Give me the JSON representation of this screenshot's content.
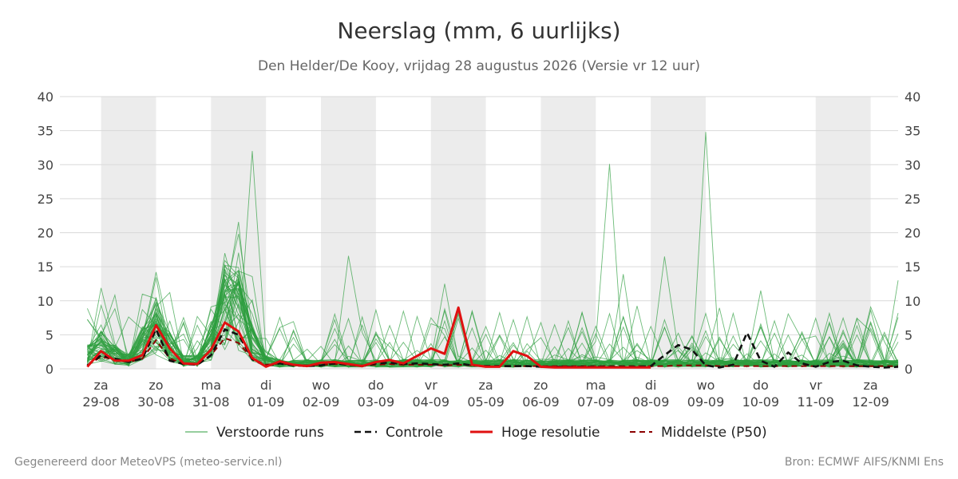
{
  "title": "Neerslag (mm, 6 uurlijks)",
  "subtitle": "Den Helder/De Kooy, vrijdag 28 augustus 2026 (Versie vr 12 uur)",
  "footer_left": "Gegenereerd door MeteoVPS (meteo-service.nl)",
  "footer_right": "Bron: ECMWF AIFS/KNMI Ens",
  "colors": {
    "ensemble": "#2e9e3e",
    "control": "#111111",
    "highres": "#e01010",
    "median": "#8b0000",
    "weekend_band": "#ececec",
    "grid": "#d9d9d9"
  },
  "chart_data": {
    "type": "line",
    "ylim": [
      0,
      40
    ],
    "yticks": [
      0,
      5,
      10,
      15,
      20,
      25,
      30,
      35,
      40
    ],
    "xlim_days": [
      -0.75,
      14.5
    ],
    "grid": true,
    "legend_position": "bottom",
    "x_ticks": [
      {
        "day": "za",
        "date": "29-08"
      },
      {
        "day": "zo",
        "date": "30-08"
      },
      {
        "day": "ma",
        "date": "31-08"
      },
      {
        "day": "di",
        "date": "01-09"
      },
      {
        "day": "wo",
        "date": "02-09"
      },
      {
        "day": "do",
        "date": "03-09"
      },
      {
        "day": "vr",
        "date": "04-09"
      },
      {
        "day": "za",
        "date": "05-09"
      },
      {
        "day": "zo",
        "date": "06-09"
      },
      {
        "day": "ma",
        "date": "07-09"
      },
      {
        "day": "di",
        "date": "08-09"
      },
      {
        "day": "wo",
        "date": "09-09"
      },
      {
        "day": "do",
        "date": "10-09"
      },
      {
        "day": "vr",
        "date": "11-09"
      },
      {
        "day": "za",
        "date": "12-09"
      }
    ],
    "shaded_bands": [
      [
        0,
        1
      ],
      [
        2,
        3
      ],
      [
        4,
        5
      ],
      [
        6,
        7
      ],
      [
        8,
        9
      ],
      [
        10,
        11
      ],
      [
        13,
        14
      ]
    ],
    "legend": [
      {
        "key": "ensemble",
        "label": "Verstoorde runs",
        "style": "thin"
      },
      {
        "key": "control",
        "label": "Controle",
        "style": "dashed"
      },
      {
        "key": "highres",
        "label": "Hoge resolutie",
        "style": "thick"
      },
      {
        "key": "median",
        "label": "Middelste (P50)",
        "style": "dashed"
      }
    ],
    "series": [
      {
        "name": "Hoge resolutie",
        "x": [
          -0.25,
          0,
          0.25,
          0.5,
          0.75,
          1,
          1.25,
          1.5,
          1.75,
          2,
          2.25,
          2.5,
          2.75,
          3,
          3.25,
          3.5,
          3.75,
          4,
          4.25,
          4.5,
          4.75,
          5,
          5.25,
          5.5,
          5.75,
          6,
          6.25,
          6.5,
          6.75,
          7,
          7.25,
          7.5,
          7.75,
          8,
          8.25,
          8.5,
          8.75,
          9,
          9.25,
          9.5,
          9.75,
          10
        ],
        "values": [
          0.3,
          2.6,
          1.2,
          1.2,
          2.0,
          6.4,
          3.0,
          0.8,
          0.7,
          2.8,
          6.8,
          5.5,
          1.6,
          0.3,
          1.1,
          0.6,
          0.4,
          0.9,
          1.0,
          0.7,
          0.4,
          1.0,
          1.3,
          0.8,
          1.9,
          3.0,
          2.2,
          9.0,
          0.6,
          0.3,
          0.3,
          2.6,
          1.9,
          0.3,
          0.2,
          0.2,
          0.2,
          0.2,
          0.2,
          0.2,
          0.2,
          0.2
        ]
      },
      {
        "name": "Controle",
        "x": [
          -0.25,
          0,
          0.25,
          0.5,
          0.75,
          1,
          1.25,
          1.5,
          1.75,
          2,
          2.25,
          2.5,
          2.75,
          3,
          3.25,
          3.5,
          3.75,
          4,
          4.25,
          4.5,
          4.75,
          5,
          5.25,
          5.5,
          5.75,
          6,
          6.25,
          6.5,
          6.75,
          7,
          7.25,
          7.5,
          7.75,
          8,
          8.25,
          8.5,
          8.75,
          9,
          9.25,
          9.5,
          9.75,
          10,
          10.25,
          10.5,
          10.75,
          11,
          11.25,
          11.5,
          11.75,
          12,
          12.25,
          12.5,
          12.75,
          13,
          13.25,
          13.5,
          13.75,
          14,
          14.25,
          14.5
        ],
        "values": [
          0.5,
          2.0,
          1.5,
          1.0,
          1.5,
          5.8,
          1.2,
          0.7,
          0.6,
          2.0,
          5.8,
          5.0,
          1.4,
          0.4,
          0.8,
          0.5,
          0.4,
          0.5,
          0.8,
          0.6,
          0.4,
          0.8,
          0.9,
          0.7,
          0.8,
          0.7,
          0.6,
          0.8,
          0.5,
          0.4,
          0.4,
          0.4,
          0.4,
          0.3,
          0.3,
          0.3,
          0.3,
          0.3,
          0.3,
          0.3,
          0.3,
          0.4,
          2.0,
          3.5,
          2.8,
          0.5,
          0.2,
          0.6,
          5.3,
          1.2,
          0.3,
          2.4,
          0.8,
          0.3,
          1.0,
          1.2,
          0.5,
          0.3,
          0.2,
          0.3
        ]
      },
      {
        "name": "Middelste (P50)",
        "x": [
          -0.25,
          0,
          0.25,
          0.5,
          0.75,
          1,
          1.25,
          1.5,
          1.75,
          2,
          2.25,
          2.5,
          2.75,
          3,
          3.25,
          3.5,
          3.75,
          4,
          4.25,
          4.5,
          4.75,
          5,
          5.25,
          5.5,
          5.75,
          6,
          6.25,
          6.5,
          6.75,
          7,
          7.25,
          7.5,
          7.75,
          8,
          8.25,
          8.5,
          8.75,
          9,
          9.25,
          9.5,
          9.75,
          10,
          10.25,
          10.5,
          10.75,
          11,
          11.25,
          11.5,
          11.75,
          12,
          12.25,
          12.5,
          12.75,
          13,
          13.25,
          13.5,
          13.75,
          14,
          14.25,
          14.5
        ],
        "values": [
          0.5,
          1.8,
          1.3,
          1.0,
          1.5,
          4.2,
          1.5,
          0.8,
          0.7,
          2.0,
          4.5,
          3.8,
          1.5,
          0.6,
          0.8,
          0.6,
          0.5,
          0.6,
          0.7,
          0.6,
          0.5,
          0.6,
          0.7,
          0.6,
          0.6,
          0.6,
          0.5,
          0.6,
          0.5,
          0.4,
          0.4,
          0.4,
          0.4,
          0.4,
          0.4,
          0.4,
          0.4,
          0.4,
          0.4,
          0.4,
          0.4,
          0.4,
          0.4,
          0.5,
          0.5,
          0.5,
          0.4,
          0.4,
          0.4,
          0.4,
          0.4,
          0.4,
          0.4,
          0.4,
          0.4,
          0.4,
          0.4,
          0.4,
          0.4,
          0.4
        ]
      }
    ],
    "ensemble_runs": {
      "name": "Verstoorde runs",
      "count": 50,
      "x_start": -0.25,
      "x_step": 0.25,
      "notable_peaks": [
        {
          "x": 1.0,
          "value": 14.2
        },
        {
          "x": 2.25,
          "value": 17.0
        },
        {
          "x": 2.75,
          "value": 32.0
        },
        {
          "x": 4.5,
          "value": 16.6
        },
        {
          "x": 6.25,
          "value": 12.5
        },
        {
          "x": 9.25,
          "value": 30.1
        },
        {
          "x": 9.5,
          "value": 13.9
        },
        {
          "x": 10.25,
          "value": 16.5
        },
        {
          "x": 11.0,
          "value": 34.8
        },
        {
          "x": 12.0,
          "value": 11.5
        },
        {
          "x": 14.5,
          "value": 13.0
        }
      ]
    }
  }
}
